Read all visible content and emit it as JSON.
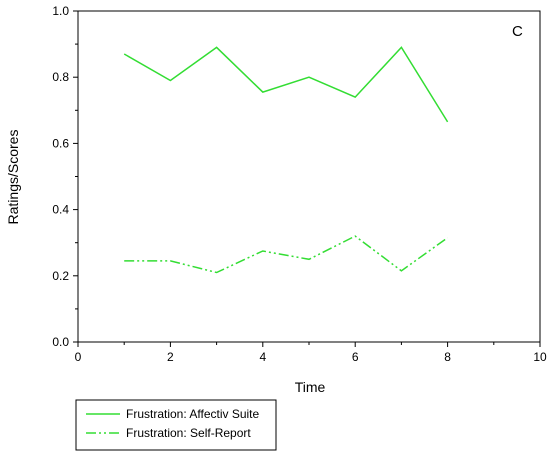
{
  "chart_data": {
    "type": "line",
    "panel_label": "C",
    "xlabel": "Time",
    "ylabel": "Ratings/Scores",
    "xlim": [
      0,
      10
    ],
    "ylim": [
      0.0,
      1.0
    ],
    "xticks": [
      0,
      2,
      4,
      6,
      8,
      10
    ],
    "xtick_labels": [
      "0",
      "2",
      "4",
      "6",
      "8",
      "10"
    ],
    "yticks": [
      0.0,
      0.2,
      0.4,
      0.6,
      0.8,
      1.0
    ],
    "ytick_labels": [
      "0.0",
      "0.2",
      "0.4",
      "0.6",
      "0.8",
      "1.0"
    ],
    "grid": false,
    "legend_position": "bottom-left-outside",
    "x": [
      1,
      2,
      3,
      4,
      5,
      6,
      7,
      8
    ],
    "series": [
      {
        "name": "Frustration: Affectiv Suite",
        "values": [
          0.87,
          0.79,
          0.89,
          0.755,
          0.8,
          0.74,
          0.89,
          0.665
        ],
        "color": "#33dd33",
        "dash": "solid"
      },
      {
        "name": "Frustration: Self-Report",
        "values": [
          0.245,
          0.245,
          0.21,
          0.275,
          0.25,
          0.32,
          0.215,
          0.315
        ],
        "color": "#33dd33",
        "dash": "dash-dot-dot"
      }
    ]
  }
}
